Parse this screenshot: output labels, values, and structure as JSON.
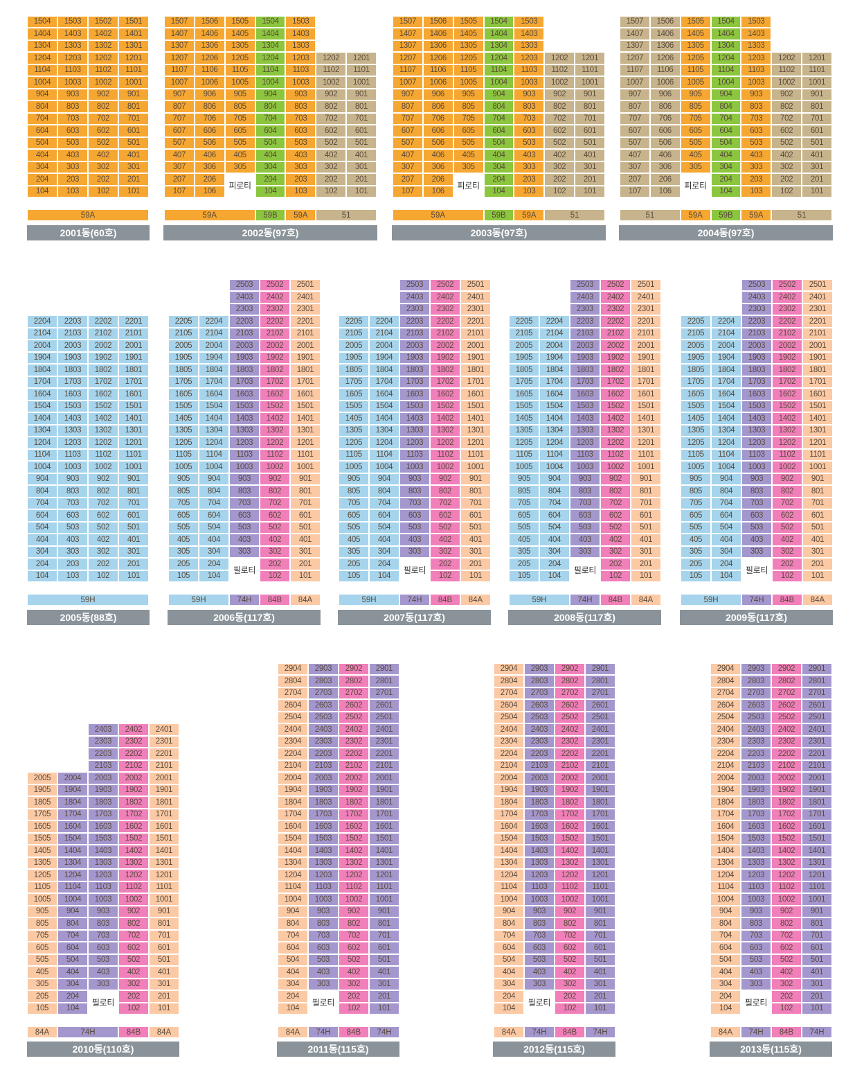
{
  "colors": {
    "59A": "#f6a731",
    "59B": "#8cc63e",
    "51": "#c8b48c",
    "59H": "#a5d4ec",
    "74H": "#a497ce",
    "84B": "#f07fba",
    "84A": "#fbc9a4",
    "title_bar": "#8a9399",
    "piloti": "#ffffff"
  },
  "piloti_label": "피로티",
  "piloti_label_alt": "필로티",
  "buildings": [
    {
      "name": "2001동(60호)",
      "top_floor": 15,
      "cols": [
        {
          "unit": 4,
          "type": "59A"
        },
        {
          "unit": 3,
          "type": "59A"
        },
        {
          "unit": 2,
          "type": "59A"
        },
        {
          "unit": 1,
          "type": "59A"
        }
      ],
      "piloti_cols": [],
      "piloti_label_key": "piloti_label",
      "types": [
        {
          "label": "59A",
          "type": "59A"
        }
      ]
    },
    {
      "name": "2002동(97호)",
      "top_floor": 15,
      "cols": [
        {
          "unit": 7,
          "type": "59A"
        },
        {
          "unit": 6,
          "type": "59A"
        },
        {
          "unit": 5,
          "type": "59A"
        },
        {
          "unit": 4,
          "type": "59B"
        },
        {
          "unit": 3,
          "type": "59A"
        },
        {
          "unit": 2,
          "type": "51",
          "top": 12
        },
        {
          "unit": 1,
          "type": "51",
          "top": 12
        }
      ],
      "piloti_cols": [
        2
      ],
      "piloti_label_key": "piloti_label",
      "types": [
        {
          "label": "59A",
          "type": "59A"
        },
        {
          "label": "59B",
          "type": "59B"
        },
        {
          "label": "59A",
          "type": "59A"
        },
        {
          "label": "51",
          "type": "51"
        }
      ]
    },
    {
      "name": "2003동(97호)",
      "top_floor": 15,
      "cols": [
        {
          "unit": 7,
          "type": "59A"
        },
        {
          "unit": 6,
          "type": "59A"
        },
        {
          "unit": 5,
          "type": "59A"
        },
        {
          "unit": 4,
          "type": "59B"
        },
        {
          "unit": 3,
          "type": "59A"
        },
        {
          "unit": 2,
          "type": "51",
          "top": 12
        },
        {
          "unit": 1,
          "type": "51",
          "top": 12
        }
      ],
      "piloti_cols": [
        2
      ],
      "piloti_label_key": "piloti_label",
      "types": [
        {
          "label": "59A",
          "type": "59A"
        },
        {
          "label": "59B",
          "type": "59B"
        },
        {
          "label": "59A",
          "type": "59A"
        },
        {
          "label": "51",
          "type": "51"
        }
      ]
    },
    {
      "name": "2004동(97호)",
      "top_floor": 15,
      "cols": [
        {
          "unit": 7,
          "type": "51"
        },
        {
          "unit": 6,
          "type": "51"
        },
        {
          "unit": 5,
          "type": "59A"
        },
        {
          "unit": 4,
          "type": "59B"
        },
        {
          "unit": 3,
          "type": "59A"
        },
        {
          "unit": 2,
          "type": "51",
          "top": 12
        },
        {
          "unit": 1,
          "type": "51",
          "top": 12
        }
      ],
      "piloti_cols": [
        2
      ],
      "piloti_label_key": "piloti_label",
      "types": [
        {
          "label": "51",
          "type": "51"
        },
        {
          "label": "59A",
          "type": "59A"
        },
        {
          "label": "59B",
          "type": "59B"
        },
        {
          "label": "59A",
          "type": "59A"
        },
        {
          "label": "51",
          "type": "51"
        }
      ]
    },
    {
      "name": "2005동(88호)",
      "top_floor": 22,
      "cols": [
        {
          "unit": 4,
          "type": "59H"
        },
        {
          "unit": 3,
          "type": "59H"
        },
        {
          "unit": 2,
          "type": "59H"
        },
        {
          "unit": 1,
          "type": "59H"
        }
      ],
      "piloti_cols": [],
      "piloti_label_key": "piloti_label_alt",
      "types": [
        {
          "label": "59H",
          "type": "59H"
        }
      ]
    },
    {
      "name": "2006동(117호)",
      "top_floor": 25,
      "cols": [
        {
          "unit": 5,
          "type": "59H",
          "top": 22
        },
        {
          "unit": 4,
          "type": "59H",
          "top": 22
        },
        {
          "unit": 3,
          "type": "74H"
        },
        {
          "unit": 2,
          "type": "84B"
        },
        {
          "unit": 1,
          "type": "84A"
        }
      ],
      "piloti_cols": [
        2
      ],
      "piloti_label_key": "piloti_label_alt",
      "types": [
        {
          "label": "59H",
          "type": "59H"
        },
        {
          "label": "74H",
          "type": "74H"
        },
        {
          "label": "84B",
          "type": "84B"
        },
        {
          "label": "84A",
          "type": "84A"
        }
      ]
    },
    {
      "name": "2007동(117호)",
      "top_floor": 25,
      "cols": [
        {
          "unit": 5,
          "type": "59H",
          "top": 22
        },
        {
          "unit": 4,
          "type": "59H",
          "top": 22
        },
        {
          "unit": 3,
          "type": "74H"
        },
        {
          "unit": 2,
          "type": "84B"
        },
        {
          "unit": 1,
          "type": "84A"
        }
      ],
      "piloti_cols": [
        2
      ],
      "piloti_label_key": "piloti_label_alt",
      "types": [
        {
          "label": "59H",
          "type": "59H"
        },
        {
          "label": "74H",
          "type": "74H"
        },
        {
          "label": "84B",
          "type": "84B"
        },
        {
          "label": "84A",
          "type": "84A"
        }
      ]
    },
    {
      "name": "2008동(117호)",
      "top_floor": 25,
      "cols": [
        {
          "unit": 5,
          "type": "59H",
          "top": 22
        },
        {
          "unit": 4,
          "type": "59H",
          "top": 22
        },
        {
          "unit": 3,
          "type": "74H"
        },
        {
          "unit": 2,
          "type": "84B"
        },
        {
          "unit": 1,
          "type": "84A"
        }
      ],
      "piloti_cols": [
        2
      ],
      "piloti_label_key": "piloti_label_alt",
      "types": [
        {
          "label": "59H",
          "type": "59H"
        },
        {
          "label": "74H",
          "type": "74H"
        },
        {
          "label": "84B",
          "type": "84B"
        },
        {
          "label": "84A",
          "type": "84A"
        }
      ]
    },
    {
      "name": "2009동(117호)",
      "top_floor": 25,
      "cols": [
        {
          "unit": 5,
          "type": "59H",
          "top": 22
        },
        {
          "unit": 4,
          "type": "59H",
          "top": 22
        },
        {
          "unit": 3,
          "type": "74H"
        },
        {
          "unit": 2,
          "type": "84B"
        },
        {
          "unit": 1,
          "type": "84A"
        }
      ],
      "piloti_cols": [
        2
      ],
      "piloti_label_key": "piloti_label_alt",
      "types": [
        {
          "label": "59H",
          "type": "59H"
        },
        {
          "label": "74H",
          "type": "74H"
        },
        {
          "label": "84B",
          "type": "84B"
        },
        {
          "label": "84A",
          "type": "84A"
        }
      ]
    },
    {
      "name": "2010동(110호)",
      "top_floor": 24,
      "cols": [
        {
          "unit": 5,
          "type": "84A",
          "top": 20
        },
        {
          "unit": 4,
          "type": "74H",
          "top": 20
        },
        {
          "unit": 3,
          "type": "74H"
        },
        {
          "unit": 2,
          "type": "84B"
        },
        {
          "unit": 1,
          "type": "84A"
        }
      ],
      "piloti_cols": [
        2
      ],
      "piloti_label_key": "piloti_label_alt",
      "types": [
        {
          "label": "84A",
          "type": "84A"
        },
        {
          "label": "74H",
          "type": "74H"
        },
        {
          "label": "84B",
          "type": "84B"
        },
        {
          "label": "84A",
          "type": "84A"
        }
      ]
    },
    {
      "name": "2011동(115호)",
      "top_floor": 29,
      "cols": [
        {
          "unit": 4,
          "type": "84A"
        },
        {
          "unit": 3,
          "type": "74H"
        },
        {
          "unit": 2,
          "type": "84B"
        },
        {
          "unit": 1,
          "type": "74H"
        }
      ],
      "piloti_cols": [
        1
      ],
      "piloti_label_key": "piloti_label_alt",
      "types": [
        {
          "label": "84A",
          "type": "84A"
        },
        {
          "label": "74H",
          "type": "74H"
        },
        {
          "label": "84B",
          "type": "84B"
        },
        {
          "label": "74H",
          "type": "74H"
        }
      ]
    },
    {
      "name": "2012동(115호)",
      "top_floor": 29,
      "cols": [
        {
          "unit": 4,
          "type": "84A"
        },
        {
          "unit": 3,
          "type": "74H"
        },
        {
          "unit": 2,
          "type": "84B"
        },
        {
          "unit": 1,
          "type": "74H"
        }
      ],
      "piloti_cols": [
        1
      ],
      "piloti_label_key": "piloti_label_alt",
      "types": [
        {
          "label": "84A",
          "type": "84A"
        },
        {
          "label": "74H",
          "type": "74H"
        },
        {
          "label": "84B",
          "type": "84B"
        },
        {
          "label": "74H",
          "type": "74H"
        }
      ]
    },
    {
      "name": "2013동(115호)",
      "top_floor": 29,
      "cols": [
        {
          "unit": 4,
          "type": "84A"
        },
        {
          "unit": 3,
          "type": "74H"
        },
        {
          "unit": 2,
          "type": "84B"
        },
        {
          "unit": 1,
          "type": "74H"
        }
      ],
      "piloti_cols": [
        1
      ],
      "piloti_label_key": "piloti_label_alt",
      "types": [
        {
          "label": "84A",
          "type": "84A"
        },
        {
          "label": "74H",
          "type": "74H"
        },
        {
          "label": "84B",
          "type": "84B"
        },
        {
          "label": "74H",
          "type": "74H"
        }
      ]
    }
  ]
}
